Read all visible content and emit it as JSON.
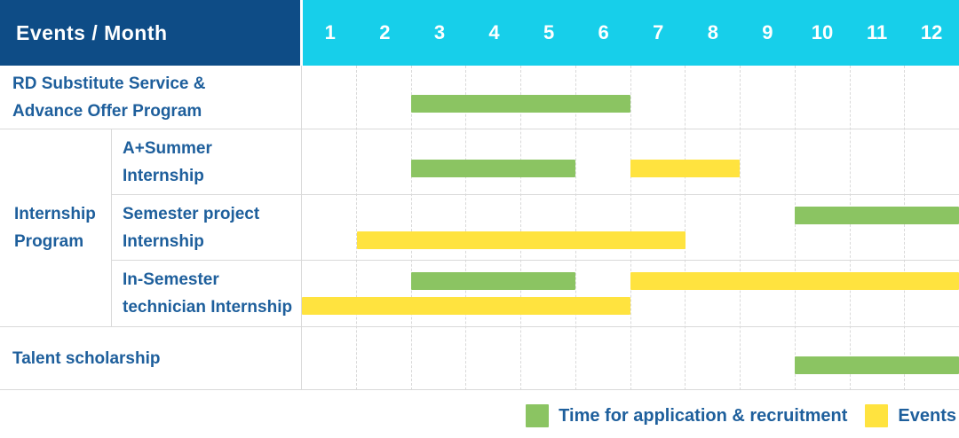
{
  "header": {
    "title": "Events / Month"
  },
  "group": {
    "label": "Internship Program",
    "label_lines": [
      "Internship",
      "Program"
    ]
  },
  "colors": {
    "header_bg": "#0E4C86",
    "months_bg": "#17CFEA",
    "text_blue": "#1E5F9C",
    "green": "#8BC462",
    "yellow": "#FFE33F",
    "grid": "#D9D9D9"
  },
  "legend": [
    {
      "key": "application",
      "label": "Time for application & recruitment"
    },
    {
      "key": "event",
      "label": "Events"
    }
  ],
  "chart_data": {
    "type": "bar",
    "subtype": "gantt",
    "title": "Events / Month",
    "months": [
      "1",
      "2",
      "3",
      "4",
      "5",
      "6",
      "7",
      "8",
      "9",
      "10",
      "11",
      "12"
    ],
    "x_range": [
      1,
      12
    ],
    "grid": true,
    "legend_position": "bottom-right",
    "series_types": {
      "application": {
        "label": "Time for application & recruitment",
        "color": "#8BC462"
      },
      "event": {
        "label": "Events",
        "color": "#FFE33F"
      }
    },
    "rows": [
      {
        "label": "RD Substitute Service & Advance Offer Program",
        "label_lines": [
          "RD Substitute Service &",
          "Advance Offer Program"
        ],
        "group": null,
        "bars": [
          {
            "type": "application",
            "start": 3,
            "end": 6,
            "lane": "single"
          }
        ]
      },
      {
        "label": "A+Summer Internship",
        "label_lines": [
          "A+Summer",
          "Internship"
        ],
        "group": "Internship Program",
        "bars": [
          {
            "type": "application",
            "start": 3,
            "end": 5,
            "lane": "single"
          },
          {
            "type": "event",
            "start": 7,
            "end": 8,
            "lane": "single"
          }
        ]
      },
      {
        "label": "Semester project Internship",
        "label_lines": [
          "Semester project",
          "Internship"
        ],
        "group": "Internship Program",
        "bars": [
          {
            "type": "application",
            "start": 10,
            "end": 12,
            "lane": "upper"
          },
          {
            "type": "event",
            "start": 2,
            "end": 7,
            "lane": "lower"
          }
        ]
      },
      {
        "label": "In-Semester technician Internship",
        "label_lines": [
          "In-Semester",
          "technician Internship"
        ],
        "group": "Internship Program",
        "bars": [
          {
            "type": "application",
            "start": 3,
            "end": 5,
            "lane": "upper"
          },
          {
            "type": "event",
            "start": 7,
            "end": 12,
            "lane": "upper"
          },
          {
            "type": "event",
            "start": 1,
            "end": 6,
            "lane": "lower"
          }
        ]
      },
      {
        "label": "Talent scholarship",
        "label_lines": [
          "Talent scholarship"
        ],
        "group": null,
        "bars": [
          {
            "type": "application",
            "start": 10,
            "end": 12,
            "lane": "single"
          }
        ]
      }
    ]
  }
}
